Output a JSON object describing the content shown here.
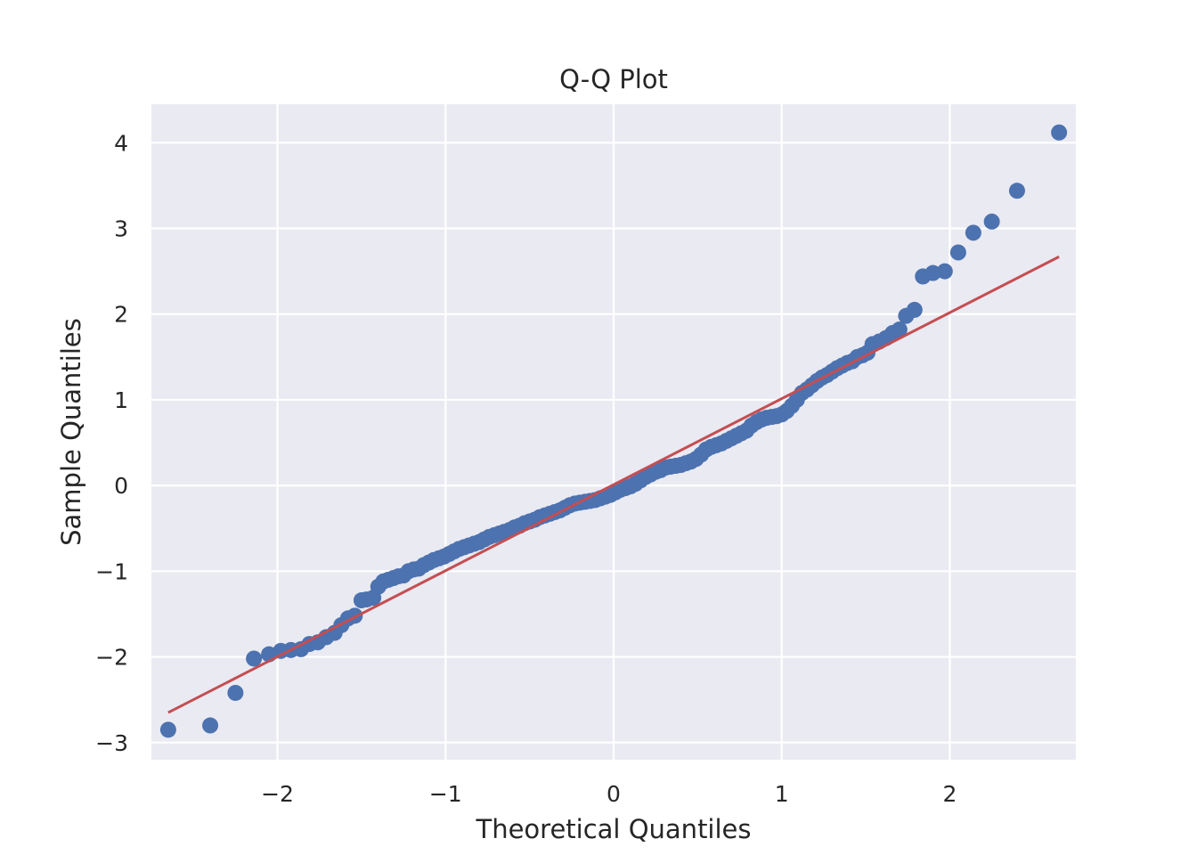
{
  "colors": {
    "plot_background": "#eaeaf2",
    "grid": "#ffffff",
    "points": "#4c72b0",
    "reference_line": "#c44e52",
    "text": "#262626"
  },
  "chart_data": {
    "type": "scatter",
    "title": "Q-Q Plot",
    "xlabel": "Theoretical Quantiles",
    "ylabel": "Sample Quantiles",
    "xlim": [
      -2.75,
      2.75
    ],
    "ylim": [
      -3.2,
      4.45
    ],
    "grid": true,
    "x_ticks": [
      {
        "value": -2,
        "label": "−2"
      },
      {
        "value": -1,
        "label": "−1"
      },
      {
        "value": 0,
        "label": "0"
      },
      {
        "value": 1,
        "label": "1"
      },
      {
        "value": 2,
        "label": "2"
      }
    ],
    "y_ticks": [
      {
        "value": -3,
        "label": "−3"
      },
      {
        "value": -2,
        "label": "−2"
      },
      {
        "value": -1,
        "label": "−1"
      },
      {
        "value": 0,
        "label": "0"
      },
      {
        "value": 1,
        "label": "1"
      },
      {
        "value": 2,
        "label": "2"
      },
      {
        "value": 3,
        "label": "3"
      },
      {
        "value": 4,
        "label": "4"
      }
    ],
    "reference_line": {
      "x": [
        -2.65,
        2.65
      ],
      "y": [
        -2.65,
        2.67
      ]
    },
    "series": [
      {
        "x": [
          -2.65,
          -2.4,
          -2.25,
          -2.14,
          -2.05,
          -1.98,
          -1.92,
          -1.86,
          -1.81,
          -1.76,
          -1.71,
          -1.66,
          -1.62,
          -1.58,
          -1.54,
          -1.5,
          -1.47,
          -1.43,
          -1.4,
          -1.37,
          -1.34,
          -1.31,
          -1.28,
          -1.25,
          -1.22,
          -1.19,
          -1.16,
          -1.13,
          -1.1,
          -1.07,
          -1.04,
          -1.01,
          -0.98,
          -0.95,
          -0.92,
          -0.89,
          -0.86,
          -0.83,
          -0.8,
          -0.77,
          -0.74,
          -0.71,
          -0.68,
          -0.65,
          -0.62,
          -0.59,
          -0.56,
          -0.53,
          -0.5,
          -0.47,
          -0.44,
          -0.41,
          -0.38,
          -0.35,
          -0.32,
          -0.29,
          -0.26,
          -0.23,
          -0.2,
          -0.17,
          -0.14,
          -0.11,
          -0.08,
          -0.05,
          -0.02,
          0.01,
          0.04,
          0.07,
          0.1,
          0.13,
          0.16,
          0.19,
          0.22,
          0.25,
          0.28,
          0.31,
          0.34,
          0.37,
          0.4,
          0.43,
          0.46,
          0.49,
          0.52,
          0.55,
          0.58,
          0.61,
          0.64,
          0.67,
          0.7,
          0.73,
          0.76,
          0.79,
          0.82,
          0.85,
          0.88,
          0.91,
          0.94,
          0.97,
          1.0,
          1.03,
          1.06,
          1.09,
          1.12,
          1.15,
          1.18,
          1.21,
          1.24,
          1.27,
          1.3,
          1.33,
          1.36,
          1.39,
          1.42,
          1.45,
          1.48,
          1.51,
          1.54,
          1.58,
          1.62,
          1.66,
          1.7,
          1.74,
          1.79,
          1.84,
          1.9,
          1.97,
          2.05,
          2.14,
          2.25,
          2.4,
          2.65
        ],
        "y": [
          -2.85,
          -2.8,
          -2.42,
          -2.02,
          -1.97,
          -1.93,
          -1.92,
          -1.91,
          -1.85,
          -1.83,
          -1.77,
          -1.72,
          -1.63,
          -1.55,
          -1.52,
          -1.34,
          -1.33,
          -1.31,
          -1.18,
          -1.12,
          -1.1,
          -1.08,
          -1.06,
          -1.05,
          -1.0,
          -0.98,
          -0.97,
          -0.93,
          -0.9,
          -0.87,
          -0.85,
          -0.83,
          -0.8,
          -0.77,
          -0.74,
          -0.72,
          -0.7,
          -0.68,
          -0.66,
          -0.63,
          -0.6,
          -0.58,
          -0.56,
          -0.54,
          -0.52,
          -0.49,
          -0.47,
          -0.44,
          -0.42,
          -0.4,
          -0.37,
          -0.35,
          -0.33,
          -0.31,
          -0.29,
          -0.26,
          -0.23,
          -0.21,
          -0.2,
          -0.19,
          -0.18,
          -0.17,
          -0.15,
          -0.13,
          -0.11,
          -0.08,
          -0.05,
          -0.03,
          -0.01,
          0.02,
          0.06,
          0.1,
          0.13,
          0.16,
          0.18,
          0.21,
          0.22,
          0.23,
          0.24,
          0.26,
          0.28,
          0.31,
          0.36,
          0.42,
          0.45,
          0.47,
          0.49,
          0.52,
          0.55,
          0.58,
          0.61,
          0.64,
          0.7,
          0.74,
          0.77,
          0.79,
          0.8,
          0.81,
          0.83,
          0.87,
          0.93,
          1.0,
          1.08,
          1.12,
          1.17,
          1.22,
          1.26,
          1.29,
          1.33,
          1.37,
          1.4,
          1.43,
          1.45,
          1.5,
          1.52,
          1.55,
          1.65,
          1.68,
          1.72,
          1.78,
          1.82,
          1.98,
          2.05,
          2.44,
          2.48,
          2.5,
          2.72,
          2.95,
          3.08,
          3.44,
          4.12
        ]
      }
    ]
  }
}
